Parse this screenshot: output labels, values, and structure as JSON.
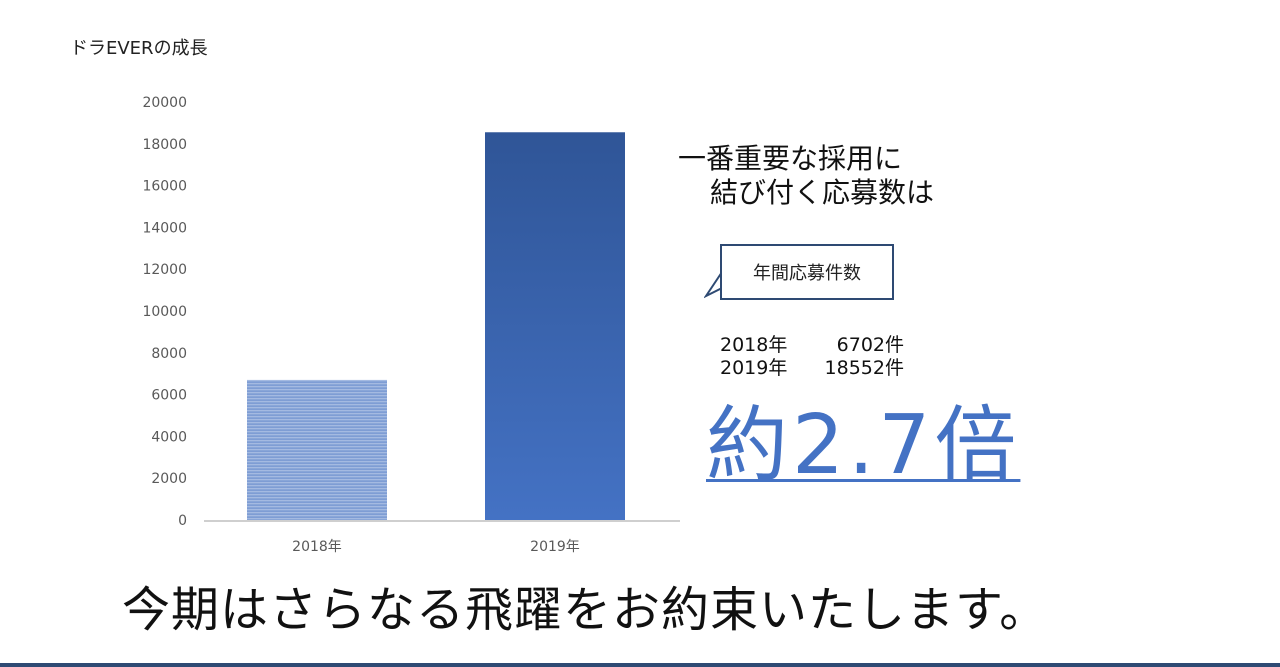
{
  "chart_data": {
    "type": "bar",
    "title": "ドラEVERの成長",
    "categories": [
      "2018年",
      "2019年"
    ],
    "values": [
      6702,
      18552
    ],
    "ylim": [
      0,
      20000
    ],
    "yticks": [
      0,
      2000,
      4000,
      6000,
      8000,
      10000,
      12000,
      14000,
      16000,
      18000,
      20000
    ],
    "grid": false,
    "colors": [
      "#8fa9d8",
      "#3a63ad"
    ]
  },
  "headline": {
    "line1": "一番重要な採用に",
    "line2": "結び付く応募数は"
  },
  "callout": {
    "label": "年間応募件数"
  },
  "stats": [
    {
      "year": "2018年",
      "value": "6702件"
    },
    {
      "year": "2019年",
      "value": "18552件"
    }
  ],
  "multiplier": "約2.7倍",
  "tagline": "今期はさらなる飛躍をお約束いたします。",
  "colors": {
    "accent": "#4472c4",
    "frame": "#2e4a73"
  }
}
